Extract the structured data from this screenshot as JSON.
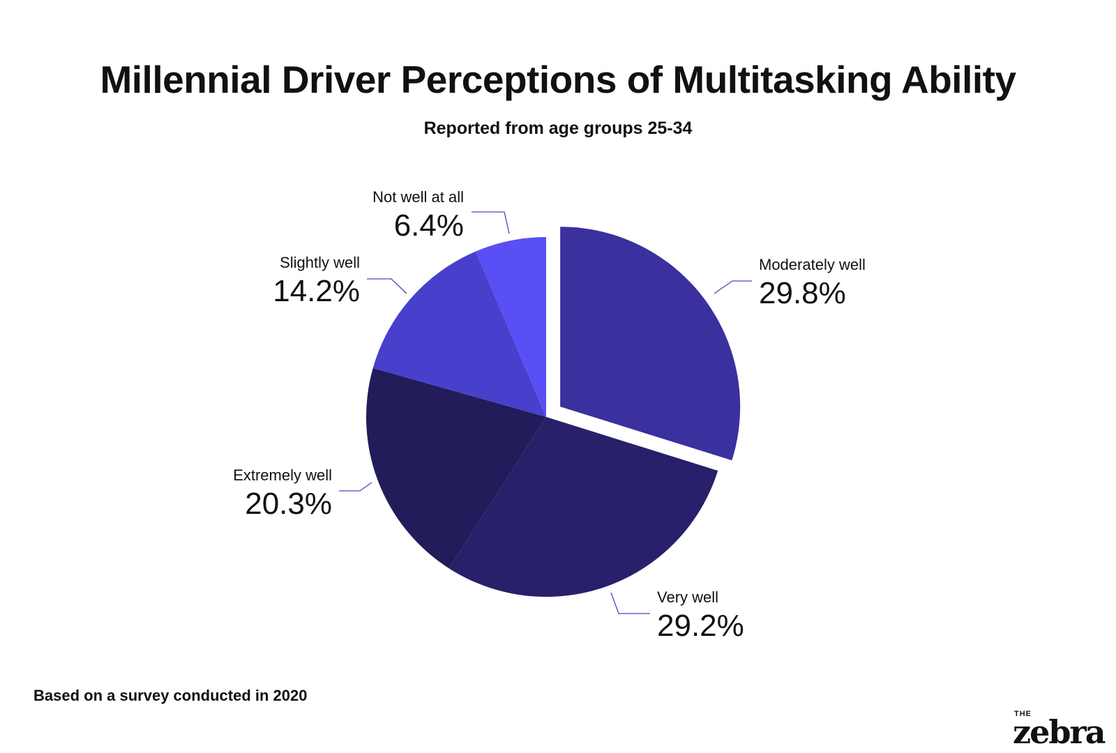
{
  "title": "Millennial Driver Perceptions of Multitasking Ability",
  "subtitle": "Reported from age groups 25-34",
  "footnote": "Based on a survey conducted in 2020",
  "logo": {
    "the": "THE",
    "word": "zebra"
  },
  "chart_data": {
    "type": "pie",
    "title": "Millennial Driver Perceptions of Multitasking Ability",
    "subtitle": "Reported from age groups 25-34",
    "categories": [
      "Moderately well",
      "Very well",
      "Extremely well",
      "Slightly well",
      "Not well at all"
    ],
    "values": [
      29.8,
      29.2,
      20.3,
      14.2,
      6.4
    ],
    "value_labels": [
      "29.8%",
      "29.2%",
      "20.3%",
      "14.2%",
      "6.4%"
    ],
    "colors": [
      "#3a309e",
      "#28206b",
      "#221c5a",
      "#4840cc",
      "#594ff5"
    ],
    "exploded": [
      "Moderately well"
    ],
    "start": "12 o'clock",
    "direction": "clockwise",
    "legend": "none"
  }
}
